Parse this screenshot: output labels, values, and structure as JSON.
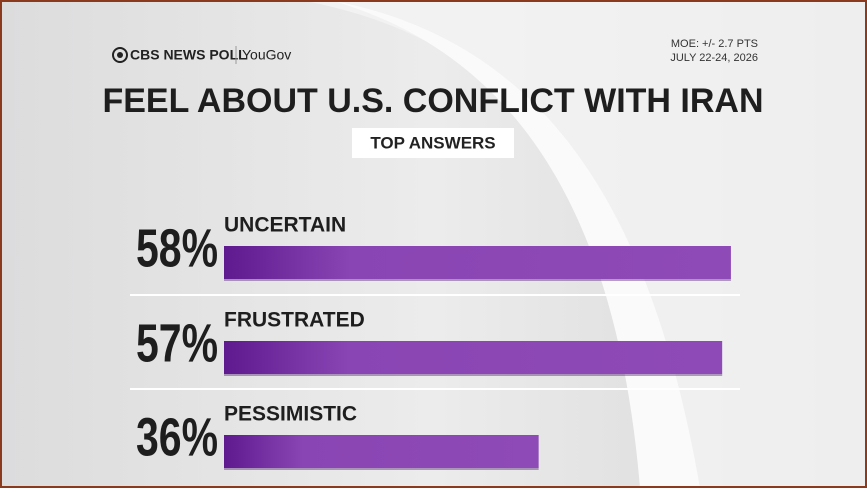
{
  "chart_data": {
    "type": "bar",
    "orientation": "horizontal",
    "title": "FEEL ABOUT U.S. CONFLICT WITH IRAN",
    "subtitle": "TOP ANSWERS",
    "source": "CBS NEWS POLL",
    "partner": "YouGov",
    "moe": "MOE: +/- 2.7 PTS",
    "dates": "JULY 22-24, 2026",
    "categories": [
      "UNCERTAIN",
      "FRUSTRATED",
      "PESSIMISTIC"
    ],
    "values": [
      58,
      57,
      36
    ],
    "value_labels": [
      "58%",
      "57%",
      "36%"
    ],
    "color": "#8a45b4"
  }
}
